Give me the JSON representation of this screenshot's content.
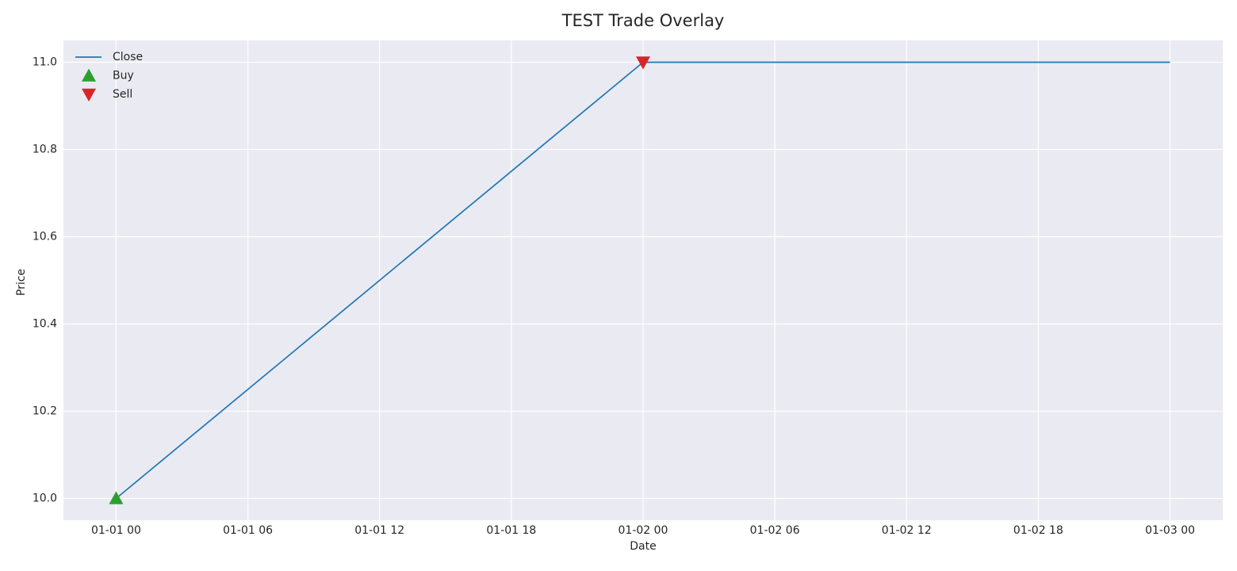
{
  "chart_data": {
    "type": "line",
    "title": "TEST Trade Overlay",
    "xlabel": "Date",
    "ylabel": "Price",
    "series": [
      {
        "name": "Close",
        "color": "#1f77b4",
        "marker": "none",
        "x": [
          "01-01 00",
          "01-02 00",
          "01-03 00"
        ],
        "values": [
          10.0,
          11.0,
          11.0
        ]
      },
      {
        "name": "Buy",
        "color": "#2ca02c",
        "marker": "triangle-up",
        "x": [
          "01-01 00"
        ],
        "values": [
          10.0
        ]
      },
      {
        "name": "Sell",
        "color": "#d62728",
        "marker": "triangle-down",
        "x": [
          "01-02 00"
        ],
        "values": [
          11.0
        ]
      }
    ],
    "xlim": [
      "12-31 21:36",
      "01-03 02:24"
    ],
    "xticks": [
      "01-01 00",
      "01-01 06",
      "01-01 12",
      "01-01 18",
      "01-02 00",
      "01-02 06",
      "01-02 12",
      "01-02 18",
      "01-03 00"
    ],
    "ylim": [
      9.95,
      11.05
    ],
    "yticks": [
      {
        "value": 10.0,
        "label": "10.0"
      },
      {
        "value": 10.2,
        "label": "10.2"
      },
      {
        "value": 10.4,
        "label": "10.4"
      },
      {
        "value": 10.6,
        "label": "10.6"
      },
      {
        "value": 10.8,
        "label": "10.8"
      },
      {
        "value": 11.0,
        "label": "11.0"
      }
    ],
    "grid": true,
    "legend": "upper left"
  }
}
